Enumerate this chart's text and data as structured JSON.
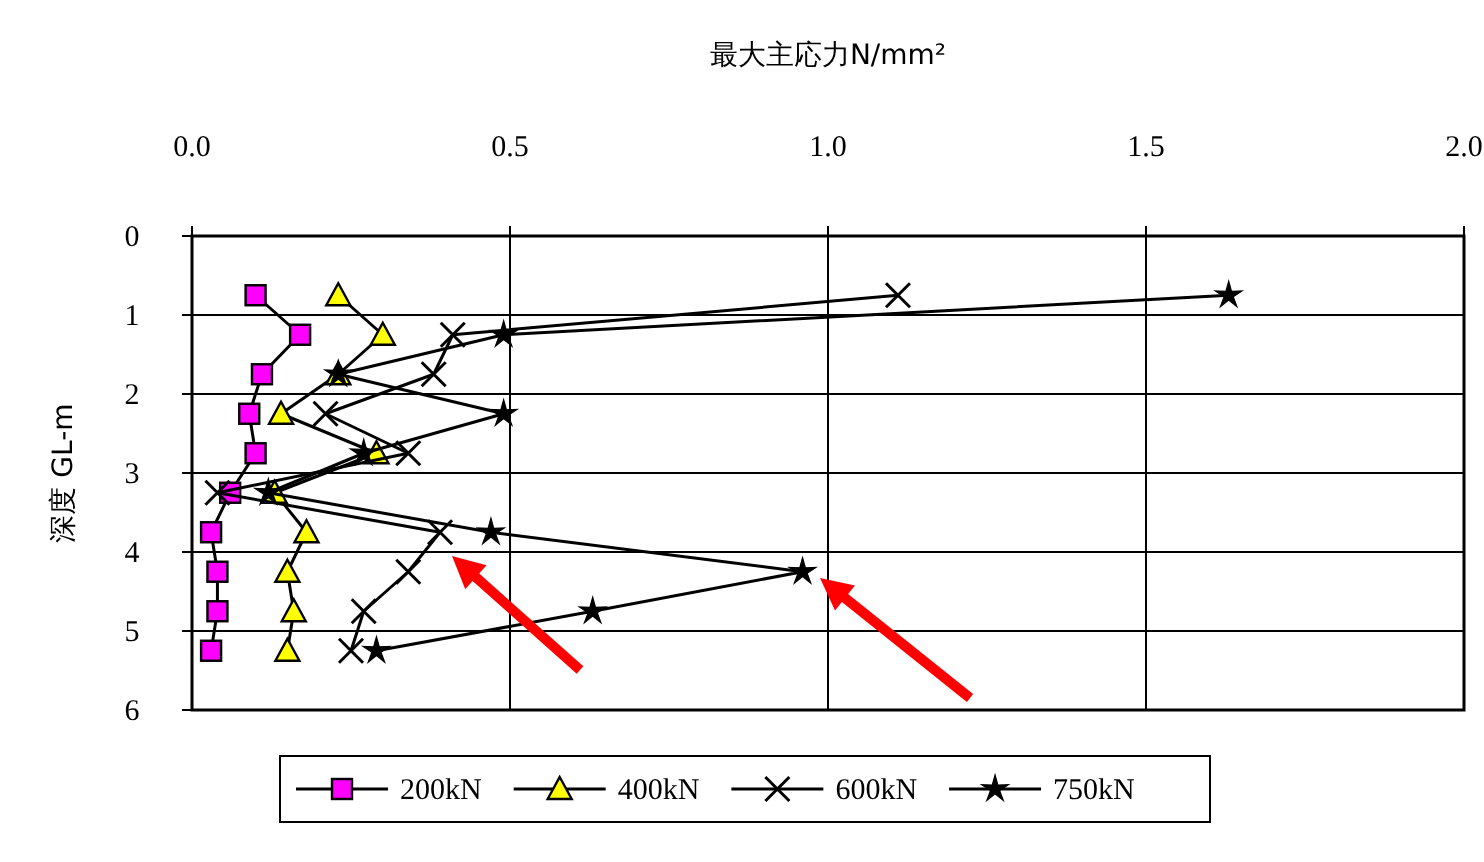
{
  "chart_data": {
    "type": "line",
    "xlabel": "最大主応力N/mm²",
    "ylabel": "深度 GL-m",
    "xlim": [
      0,
      2
    ],
    "xticks": [
      {
        "value": 0,
        "label": "0.0"
      },
      {
        "value": 0.5,
        "label": "0.5"
      },
      {
        "value": 1,
        "label": "1.0"
      },
      {
        "value": 1.5,
        "label": "1.5"
      },
      {
        "value": 2,
        "label": "2.0"
      }
    ],
    "ylim": [
      6,
      0
    ],
    "yticks": [
      0,
      1,
      2,
      3,
      4,
      5,
      6
    ],
    "grid": true,
    "legend": "bottom",
    "line_style": "solid",
    "series": [
      {
        "name": "200kN",
        "color": "#ff00ff",
        "marker": "square",
        "x": [
          0.1,
          0.17,
          0.11,
          0.09,
          0.1,
          0.06,
          0.03,
          0.04,
          0.04,
          0.03
        ],
        "values": [
          0.75,
          1.25,
          1.75,
          2.25,
          2.75,
          3.25,
          3.75,
          4.25,
          4.75,
          5.25
        ]
      },
      {
        "name": "400kN",
        "color": "#ffff00",
        "marker": "triangle",
        "x": [
          0.23,
          0.3,
          0.23,
          0.14,
          0.29,
          0.13,
          0.18,
          0.15,
          0.16,
          0.15
        ],
        "values": [
          0.75,
          1.25,
          1.75,
          2.25,
          2.75,
          3.25,
          3.75,
          4.25,
          4.75,
          5.25
        ]
      },
      {
        "name": "600kN",
        "color": "#000000",
        "marker": "cross",
        "x": [
          1.11,
          0.41,
          0.38,
          0.21,
          0.34,
          0.04,
          0.39,
          0.34,
          0.27,
          0.25
        ],
        "values": [
          0.75,
          1.25,
          1.75,
          2.25,
          2.75,
          3.25,
          3.75,
          4.25,
          4.75,
          5.25
        ]
      },
      {
        "name": "750kN",
        "color": "#000000",
        "marker": "star",
        "x": [
          1.63,
          0.49,
          0.23,
          0.49,
          0.27,
          0.12,
          0.47,
          0.96,
          0.63,
          0.29
        ],
        "values": [
          0.75,
          1.25,
          1.75,
          2.25,
          2.75,
          3.25,
          3.75,
          4.25,
          4.75,
          5.25
        ]
      }
    ]
  }
}
